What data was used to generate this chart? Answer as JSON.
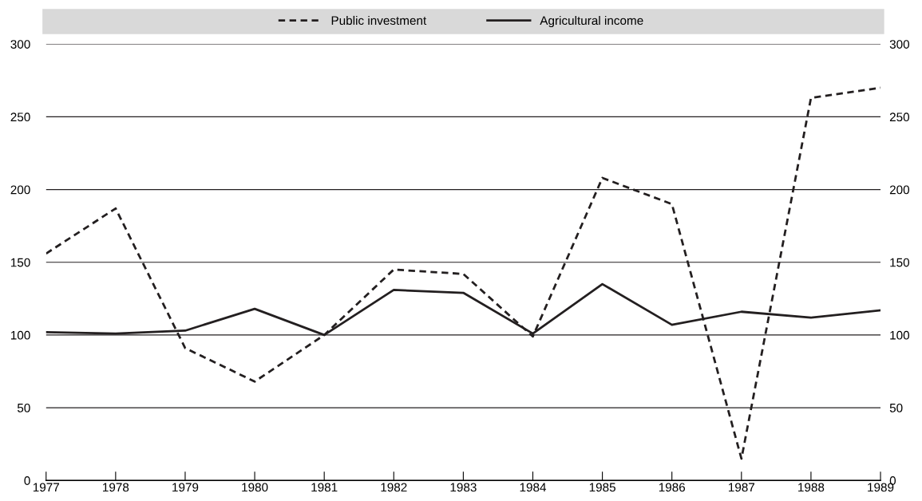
{
  "chart_data": {
    "type": "line",
    "x": [
      1977,
      1978,
      1979,
      1980,
      1981,
      1982,
      1983,
      1984,
      1985,
      1986,
      1987,
      1988,
      1989
    ],
    "series": [
      {
        "name": "Public investment",
        "color": "#231f20",
        "line_style": "dashed",
        "values": [
          156,
          187,
          91,
          68,
          100,
          145,
          142,
          99,
          208,
          190,
          15,
          263,
          270
        ]
      },
      {
        "name": "Agricultural income",
        "color": "#231f20",
        "line_style": "solid",
        "values": [
          102,
          101,
          103,
          118,
          100,
          131,
          129,
          101,
          135,
          107,
          116,
          112,
          117
        ]
      }
    ],
    "xlim": [
      1977,
      1989
    ],
    "xticks": [
      1977,
      1978,
      1979,
      1980,
      1981,
      1982,
      1983,
      1984,
      1985,
      1986,
      1987,
      1988,
      1989
    ],
    "ylim": [
      0,
      300
    ],
    "yticks": [
      0,
      50,
      100,
      150,
      200,
      250,
      300
    ],
    "y2lim": [
      0,
      300
    ],
    "y2ticks": [
      0,
      50,
      100,
      150,
      200,
      250,
      300
    ],
    "grid": "y",
    "legend": "top",
    "marker": "none"
  }
}
